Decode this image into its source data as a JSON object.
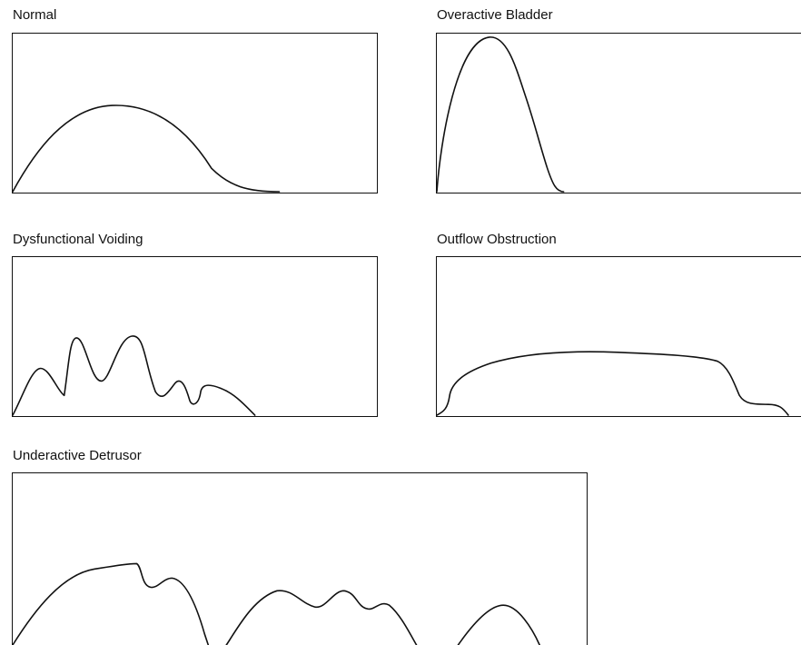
{
  "panels": [
    {
      "id": "normal",
      "title": "Normal"
    },
    {
      "id": "overactive-bladder",
      "title": "Overactive Bladder"
    },
    {
      "id": "dysfunctional-voiding",
      "title": "Dysfunctional Voiding"
    },
    {
      "id": "outflow-obstruction",
      "title": "Outflow Obstruction"
    },
    {
      "id": "underactive-detrusor",
      "title": "Underactive Detrusor"
    }
  ],
  "colors": {
    "line": "#111111",
    "background": "#ffffff"
  }
}
